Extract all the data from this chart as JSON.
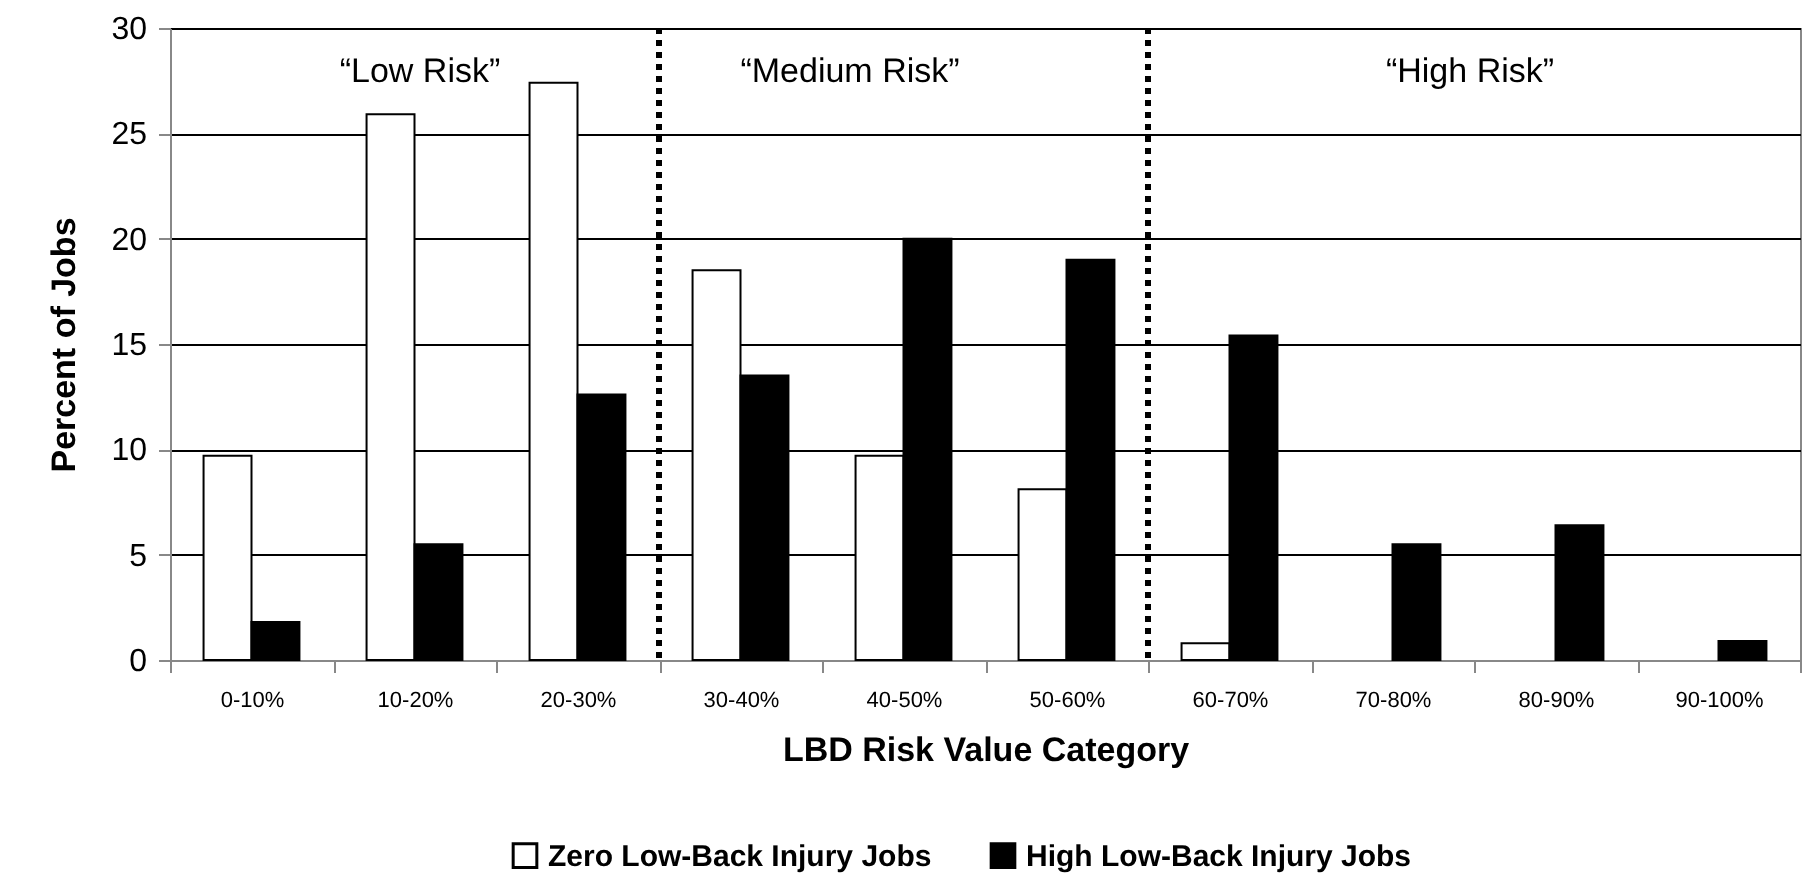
{
  "chart_data": {
    "type": "bar",
    "xlabel": "LBD Risk Value Category",
    "ylabel": "Percent of Jobs",
    "categories": [
      "0-10%",
      "10-20%",
      "20-30%",
      "30-40%",
      "40-50%",
      "50-60%",
      "60-70%",
      "70-80%",
      "80-90%",
      "90-100%"
    ],
    "series": [
      {
        "name": "Zero Low-Back Injury Jobs",
        "color": "#ffffff",
        "values": [
          9.7,
          25.9,
          27.4,
          18.5,
          9.7,
          8.1,
          0.8,
          0,
          0,
          0
        ]
      },
      {
        "name": "High Low-Back Injury Jobs",
        "color": "#000000",
        "values": [
          1.8,
          5.5,
          12.6,
          13.5,
          20.0,
          19.0,
          15.4,
          5.5,
          6.4,
          0.9
        ]
      }
    ],
    "ylim": [
      0,
      30
    ],
    "yticks": [
      0,
      5,
      10,
      15,
      20,
      25,
      30
    ],
    "grid": "y",
    "legend": "bottom",
    "annotations": [
      "“Low Risk”",
      "“Medium Risk”",
      "“High Risk”"
    ]
  }
}
